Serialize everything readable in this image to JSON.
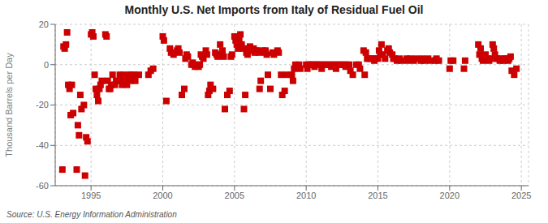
{
  "chart_data": {
    "type": "scatter",
    "title": "Monthly U.S. Net Imports from Italy of Residual Fuel Oil",
    "ylabel": "Thousand Barrels per Day",
    "annotations": [
      "Source: U.S. Energy Information Administration"
    ],
    "color": "#cc0000",
    "marker": "square",
    "grid": true,
    "xlim": [
      1992.5,
      2025.5
    ],
    "xticks": [
      1995,
      2000,
      2005,
      2010,
      2015,
      2020,
      2025
    ],
    "ylim": [
      -60,
      20
    ],
    "yticks": [
      -60,
      -40,
      -20,
      0,
      20
    ],
    "x": [
      1993.0,
      1993.08,
      1993.16,
      1993.25,
      1993.33,
      1993.41,
      1993.5,
      1993.58,
      1993.66,
      1993.75,
      1994.0,
      1994.08,
      1994.16,
      1994.25,
      1994.33,
      1994.5,
      1994.58,
      1994.66,
      1994.75,
      1995.0,
      1995.08,
      1995.16,
      1995.25,
      1995.33,
      1995.41,
      1995.5,
      1995.58,
      1995.66,
      1995.75,
      1996.0,
      1996.08,
      1996.16,
      1996.25,
      1996.33,
      1996.41,
      1996.5,
      1996.66,
      1996.75,
      1997.0,
      1997.08,
      1997.16,
      1997.25,
      1997.33,
      1997.5,
      1997.66,
      1997.75,
      1997.83,
      1998.0,
      1998.08,
      1998.33,
      1999.0,
      1999.16,
      1999.33,
      2000.0,
      2000.08,
      2000.25,
      2000.5,
      2000.58,
      2000.75,
      2001.0,
      2001.08,
      2001.16,
      2001.33,
      2001.5,
      2001.58,
      2001.66,
      2001.75,
      2002.0,
      2002.08,
      2002.16,
      2002.25,
      2002.33,
      2002.5,
      2002.58,
      2002.66,
      2002.75,
      2002.83,
      2003.0,
      2003.08,
      2003.16,
      2003.25,
      2003.33,
      2003.5,
      2003.66,
      2003.75,
      2003.83,
      2004.0,
      2004.08,
      2004.16,
      2004.25,
      2004.33,
      2004.5,
      2004.66,
      2004.75,
      2004.83,
      2005.0,
      2005.08,
      2005.16,
      2005.25,
      2005.33,
      2005.41,
      2005.5,
      2005.58,
      2005.66,
      2005.75,
      2005.83,
      2005.91,
      2006.0,
      2006.08,
      2006.16,
      2006.25,
      2006.33,
      2006.41,
      2006.5,
      2006.58,
      2006.66,
      2006.75,
      2006.83,
      2007.0,
      2007.08,
      2007.16,
      2007.25,
      2007.33,
      2007.5,
      2007.66,
      2007.75,
      2008.0,
      2008.08,
      2008.25,
      2008.33,
      2008.5,
      2008.66,
      2009.0,
      2009.08,
      2009.16,
      2009.25,
      2009.5,
      2009.58,
      2010.0,
      2010.08,
      2010.16,
      2010.25,
      2010.33,
      2010.5,
      2010.58,
      2010.66,
      2010.75,
      2010.83,
      2011.0,
      2011.08,
      2011.16,
      2011.33,
      2011.5,
      2011.66,
      2011.75,
      2011.83,
      2012.0,
      2012.08,
      2012.16,
      2012.33,
      2012.5,
      2012.66,
      2012.75,
      2012.83,
      2013.0,
      2013.08,
      2013.25,
      2013.5,
      2013.66,
      2013.75,
      2014.0,
      2014.08,
      2014.16,
      2014.25,
      2014.33,
      2014.5,
      2014.66,
      2014.75,
      2014.83,
      2015.0,
      2015.08,
      2015.16,
      2015.25,
      2015.33,
      2015.5,
      2015.66,
      2015.75,
      2015.83,
      2016.0,
      2016.08,
      2016.16,
      2016.33,
      2016.5,
      2016.66,
      2017.0,
      2017.08,
      2017.25,
      2017.5,
      2017.66,
      2018.0,
      2018.08,
      2018.25,
      2018.5,
      2018.66,
      2019.0,
      2019.08,
      2019.25,
      2020.0,
      2020.08,
      2020.25,
      2021.0,
      2021.08,
      2022.0,
      2022.08,
      2022.16,
      2022.25,
      2022.33,
      2022.5,
      2022.66,
      2022.75,
      2022.83,
      2023.0,
      2023.08,
      2023.16,
      2023.25,
      2023.33,
      2023.5,
      2023.66,
      2023.75,
      2023.83,
      2024.0,
      2024.08,
      2024.16,
      2024.25,
      2024.33,
      2024.5,
      2024.66
    ],
    "values": [
      -52,
      9,
      8,
      10,
      16,
      -10,
      -12,
      -25,
      -10,
      -24,
      -52,
      -30,
      -35,
      -15,
      -22,
      -20,
      -55,
      -36,
      -38,
      15,
      16,
      14,
      -5,
      -12,
      -15,
      -18,
      -12,
      -10,
      -8,
      15,
      14,
      -8,
      -12,
      -12,
      -10,
      -5,
      -10,
      -8,
      -5,
      -8,
      -10,
      -5,
      -8,
      -10,
      -5,
      -8,
      -5,
      -5,
      -8,
      -5,
      -5,
      -3,
      -2,
      14,
      12,
      -18,
      8,
      6,
      5,
      7,
      8,
      6,
      -15,
      -12,
      3,
      5,
      4,
      0,
      1,
      0,
      -1,
      0,
      -1,
      0,
      5,
      4,
      3,
      7,
      5,
      -15,
      -13,
      -10,
      -12,
      6,
      5,
      4,
      10,
      5,
      7,
      4,
      -22,
      -15,
      -13,
      4,
      5,
      14,
      12,
      10,
      8,
      12,
      15,
      10,
      8,
      -22,
      -15,
      6,
      5,
      8,
      9,
      7,
      7,
      8,
      6,
      7,
      7,
      6,
      -12,
      -8,
      7,
      6,
      7,
      5,
      -5,
      -12,
      6,
      5,
      7,
      6,
      -5,
      -15,
      -13,
      -5,
      -5,
      -8,
      -2,
      0,
      0,
      -2,
      0,
      -2,
      0,
      0,
      0,
      0,
      -1,
      0,
      0,
      0,
      0,
      -2,
      0,
      0,
      0,
      0,
      -1,
      0,
      0,
      -2,
      0,
      0,
      0,
      0,
      -1,
      0,
      0,
      -3,
      -5,
      0,
      0,
      -2,
      7,
      -5,
      6,
      3,
      3,
      3,
      3,
      2,
      3,
      3,
      7,
      5,
      10,
      5,
      3,
      7,
      8,
      6,
      5,
      3,
      3,
      2,
      3,
      2,
      3,
      2,
      3,
      2,
      3,
      2,
      3,
      2,
      3,
      2,
      2,
      3,
      2,
      -2,
      2,
      2,
      -2,
      2,
      10,
      5,
      8,
      3,
      2,
      5,
      3,
      2,
      3,
      10,
      8,
      5,
      3,
      3,
      2,
      3,
      2,
      3,
      3,
      2,
      3,
      4,
      -3,
      -5,
      -2
    ]
  }
}
